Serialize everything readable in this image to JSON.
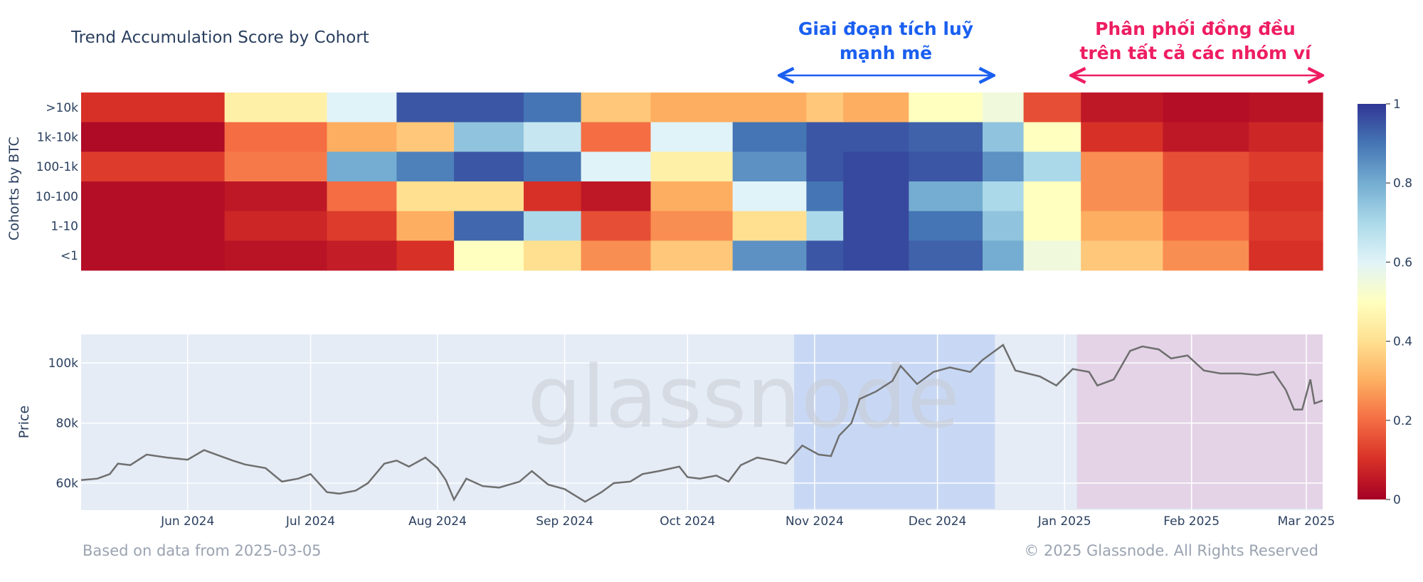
{
  "title": "Trend Accumulation Score by Cohort",
  "footer": {
    "left": "Based on data from 2025-03-05",
    "right": "© 2025 Glassnode. All Rights Reserved"
  },
  "watermark": "glassnode",
  "annotations": {
    "accumulation": {
      "line1": "Giai đoạn tích luỹ",
      "line2": "mạnh mẽ",
      "color": "#1a5ff0"
    },
    "distribution": {
      "line1": "Phân phối đồng đều",
      "line2": "trên tất cả các nhóm ví",
      "color": "#ee1d62"
    }
  },
  "colorbar": {
    "ticks": [
      "1",
      "0.8",
      "0.6",
      "0.4",
      "0.2",
      "0"
    ]
  },
  "chart_data": [
    {
      "type": "heatmap",
      "ylabel": "Cohorts by BTC",
      "rows": [
        ">10k",
        "1k-10k",
        "100-1k",
        "10-100",
        "1-10",
        "<1"
      ],
      "x_start": "2024-05-06",
      "x_end": "2025-03-05",
      "zlim": [
        0,
        1
      ],
      "colorscale": "RdYlBu",
      "segments": [
        {
          "from": "2024-05-06",
          "to": "2024-06-10",
          "values": [
            0.1,
            0.02,
            0.12,
            0.03,
            0.03,
            0.03
          ]
        },
        {
          "from": "2024-06-10",
          "to": "2024-07-05",
          "values": [
            0.45,
            0.2,
            0.22,
            0.05,
            0.08,
            0.04
          ]
        },
        {
          "from": "2024-07-05",
          "to": "2024-07-22",
          "values": [
            0.6,
            0.3,
            0.8,
            0.2,
            0.12,
            0.06
          ]
        },
        {
          "from": "2024-07-22",
          "to": "2024-08-05",
          "values": [
            0.95,
            0.35,
            0.88,
            0.4,
            0.3,
            0.1
          ]
        },
        {
          "from": "2024-08-05",
          "to": "2024-08-22",
          "values": [
            0.95,
            0.75,
            0.95,
            0.4,
            0.92,
            0.5
          ]
        },
        {
          "from": "2024-08-22",
          "to": "2024-09-05",
          "values": [
            0.9,
            0.65,
            0.9,
            0.1,
            0.7,
            0.4
          ]
        },
        {
          "from": "2024-09-05",
          "to": "2024-09-22",
          "values": [
            0.35,
            0.2,
            0.6,
            0.05,
            0.15,
            0.25
          ]
        },
        {
          "from": "2024-09-22",
          "to": "2024-10-12",
          "values": [
            0.3,
            0.6,
            0.45,
            0.3,
            0.25,
            0.35
          ]
        },
        {
          "from": "2024-10-12",
          "to": "2024-10-30",
          "values": [
            0.3,
            0.9,
            0.85,
            0.6,
            0.4,
            0.85
          ]
        },
        {
          "from": "2024-10-30",
          "to": "2024-11-08",
          "values": [
            0.35,
            0.95,
            0.95,
            0.9,
            0.7,
            0.95
          ]
        },
        {
          "from": "2024-11-08",
          "to": "2024-11-24",
          "values": [
            0.3,
            0.95,
            0.97,
            0.97,
            0.97,
            0.97
          ]
        },
        {
          "from": "2024-11-24",
          "to": "2024-12-12",
          "values": [
            0.5,
            0.93,
            0.95,
            0.8,
            0.9,
            0.93
          ]
        },
        {
          "from": "2024-12-12",
          "to": "2024-12-22",
          "values": [
            0.55,
            0.75,
            0.85,
            0.7,
            0.75,
            0.8
          ]
        },
        {
          "from": "2024-12-22",
          "to": "2025-01-05",
          "values": [
            0.15,
            0.5,
            0.7,
            0.5,
            0.5,
            0.55
          ]
        },
        {
          "from": "2025-01-05",
          "to": "2025-01-25",
          "values": [
            0.05,
            0.1,
            0.25,
            0.25,
            0.3,
            0.35
          ]
        },
        {
          "from": "2025-01-25",
          "to": "2025-02-15",
          "values": [
            0.03,
            0.05,
            0.15,
            0.15,
            0.2,
            0.25
          ]
        },
        {
          "from": "2025-02-15",
          "to": "2025-03-05",
          "values": [
            0.04,
            0.08,
            0.12,
            0.1,
            0.12,
            0.1
          ]
        }
      ]
    },
    {
      "type": "line",
      "ylabel": "Price",
      "x_range": [
        "2024-05-06",
        "2025-03-05"
      ],
      "ylim": [
        51000,
        109500
      ],
      "yticks": [
        60000,
        80000,
        100000
      ],
      "ytick_labels": [
        "60k",
        "80k",
        "100k"
      ],
      "xticks": [
        "2024-06-01",
        "2024-07-01",
        "2024-08-01",
        "2024-09-01",
        "2024-10-01",
        "2024-11-01",
        "2024-12-01",
        "2025-01-01",
        "2025-02-01",
        "2025-03-01"
      ],
      "xtick_labels": [
        "Jun 2024",
        "Jul 2024",
        "Aug 2024",
        "Sep 2024",
        "Oct 2024",
        "Nov 2024",
        "Dec 2024",
        "Jan 2025",
        "Feb 2025",
        "Mar 2025"
      ],
      "line_color": "#6f6f6f",
      "shaded_regions": [
        {
          "from": "2024-10-27",
          "to": "2024-12-15",
          "color": "#c8d8f4"
        },
        {
          "from": "2025-01-04",
          "to": "2025-03-05",
          "color": "#e4d3e7"
        }
      ],
      "points": [
        [
          "2024-05-06",
          61000
        ],
        [
          "2024-05-10",
          61500
        ],
        [
          "2024-05-13",
          63000
        ],
        [
          "2024-05-15",
          66500
        ],
        [
          "2024-05-18",
          66000
        ],
        [
          "2024-05-22",
          69500
        ],
        [
          "2024-05-27",
          68500
        ],
        [
          "2024-06-01",
          67800
        ],
        [
          "2024-06-05",
          71000
        ],
        [
          "2024-06-08",
          69500
        ],
        [
          "2024-06-12",
          67500
        ],
        [
          "2024-06-15",
          66200
        ],
        [
          "2024-06-20",
          65000
        ],
        [
          "2024-06-24",
          60500
        ],
        [
          "2024-06-28",
          61500
        ],
        [
          "2024-07-01",
          63000
        ],
        [
          "2024-07-05",
          57000
        ],
        [
          "2024-07-08",
          56500
        ],
        [
          "2024-07-12",
          57500
        ],
        [
          "2024-07-15",
          60000
        ],
        [
          "2024-07-19",
          66500
        ],
        [
          "2024-07-22",
          67500
        ],
        [
          "2024-07-25",
          65500
        ],
        [
          "2024-07-29",
          68500
        ],
        [
          "2024-08-01",
          65000
        ],
        [
          "2024-08-03",
          61000
        ],
        [
          "2024-08-05",
          54500
        ],
        [
          "2024-08-08",
          61500
        ],
        [
          "2024-08-12",
          59000
        ],
        [
          "2024-08-16",
          58500
        ],
        [
          "2024-08-21",
          60500
        ],
        [
          "2024-08-24",
          64000
        ],
        [
          "2024-08-28",
          59500
        ],
        [
          "2024-09-01",
          58000
        ],
        [
          "2024-09-06",
          53800
        ],
        [
          "2024-09-10",
          57000
        ],
        [
          "2024-09-13",
          60000
        ],
        [
          "2024-09-17",
          60500
        ],
        [
          "2024-09-20",
          63000
        ],
        [
          "2024-09-24",
          64000
        ],
        [
          "2024-09-29",
          65500
        ],
        [
          "2024-10-01",
          62000
        ],
        [
          "2024-10-04",
          61500
        ],
        [
          "2024-10-08",
          62500
        ],
        [
          "2024-10-11",
          60500
        ],
        [
          "2024-10-14",
          66000
        ],
        [
          "2024-10-18",
          68500
        ],
        [
          "2024-10-22",
          67500
        ],
        [
          "2024-10-25",
          66500
        ],
        [
          "2024-10-29",
          72500
        ],
        [
          "2024-11-02",
          69500
        ],
        [
          "2024-11-05",
          69000
        ],
        [
          "2024-11-07",
          75800
        ],
        [
          "2024-11-10",
          80000
        ],
        [
          "2024-11-12",
          88000
        ],
        [
          "2024-11-16",
          90500
        ],
        [
          "2024-11-20",
          94000
        ],
        [
          "2024-11-22",
          99000
        ],
        [
          "2024-11-26",
          93000
        ],
        [
          "2024-11-30",
          97000
        ],
        [
          "2024-12-04",
          98500
        ],
        [
          "2024-12-09",
          97000
        ],
        [
          "2024-12-12",
          101000
        ],
        [
          "2024-12-17",
          106000
        ],
        [
          "2024-12-20",
          97500
        ],
        [
          "2024-12-26",
          95500
        ],
        [
          "2024-12-30",
          92500
        ],
        [
          "2025-01-03",
          98000
        ],
        [
          "2025-01-07",
          97000
        ],
        [
          "2025-01-09",
          92500
        ],
        [
          "2025-01-13",
          94500
        ],
        [
          "2025-01-17",
          104000
        ],
        [
          "2025-01-20",
          105500
        ],
        [
          "2025-01-24",
          104500
        ],
        [
          "2025-01-27",
          101500
        ],
        [
          "2025-01-31",
          102500
        ],
        [
          "2025-02-04",
          97500
        ],
        [
          "2025-02-08",
          96500
        ],
        [
          "2025-02-13",
          96500
        ],
        [
          "2025-02-17",
          96000
        ],
        [
          "2025-02-21",
          97000
        ],
        [
          "2025-02-24",
          91000
        ],
        [
          "2025-02-26",
          84500
        ],
        [
          "2025-02-28",
          84500
        ],
        [
          "2025-03-02",
          94500
        ],
        [
          "2025-03-03",
          86500
        ],
        [
          "2025-03-05",
          87500
        ]
      ]
    }
  ]
}
